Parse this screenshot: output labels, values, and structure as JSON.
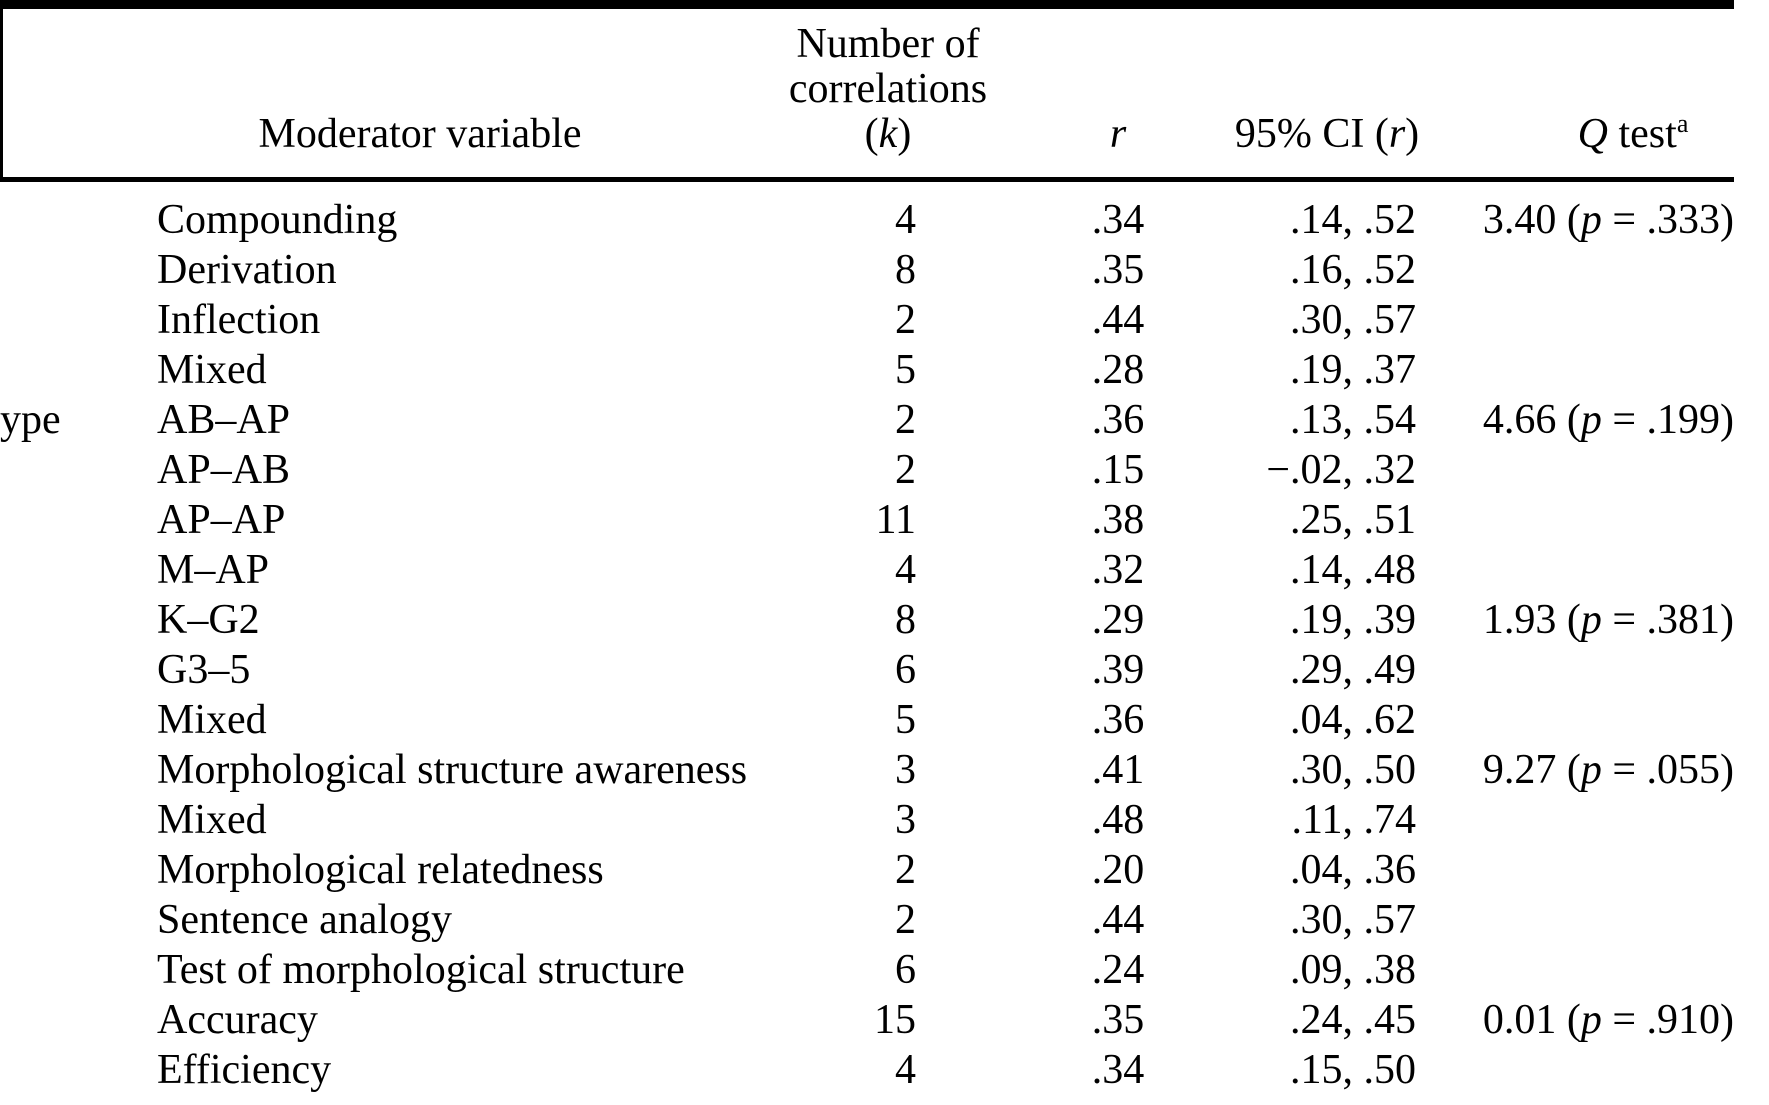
{
  "colors": {
    "ink": "#000000",
    "paper": "#ffffff"
  },
  "table": {
    "header": {
      "moderator": "Moderator variable",
      "k_line1": "Number of",
      "k_line2": "correlations",
      "k_line3": "(k)",
      "r": "r",
      "ci": "95% CI (r)",
      "q": "Q test",
      "q_sup": "a"
    },
    "rows": [
      {
        "side": "",
        "label": "Compounding",
        "k": "4",
        "r": ".34",
        "ci": ".14, .52",
        "q": "3.40 (p = .333)"
      },
      {
        "side": "",
        "label": "Derivation",
        "k": "8",
        "r": ".35",
        "ci": ".16, .52",
        "q": ""
      },
      {
        "side": "",
        "label": "Inflection",
        "k": "2",
        "r": ".44",
        "ci": ".30, .57",
        "q": ""
      },
      {
        "side": "",
        "label": "Mixed",
        "k": "5",
        "r": ".28",
        "ci": ".19, .37",
        "q": ""
      },
      {
        "side": "ype",
        "label": "AB–AP",
        "k": "2",
        "r": ".36",
        "ci": ".13, .54",
        "q": "4.66 (p = .199)"
      },
      {
        "side": "",
        "label": "AP–AB",
        "k": "2",
        "r": ".15",
        "ci": "−.02, .32",
        "q": ""
      },
      {
        "side": "",
        "label": "AP–AP",
        "k": "11",
        "r": ".38",
        "ci": ".25, .51",
        "q": ""
      },
      {
        "side": "",
        "label": "M–AP",
        "k": "4",
        "r": ".32",
        "ci": ".14, .48",
        "q": ""
      },
      {
        "side": "",
        "label": "K–G2",
        "k": "8",
        "r": ".29",
        "ci": ".19, .39",
        "q": "1.93 (p = .381)"
      },
      {
        "side": "",
        "label": "G3–5",
        "k": "6",
        "r": ".39",
        "ci": ".29, .49",
        "q": ""
      },
      {
        "side": "",
        "label": "Mixed",
        "k": "5",
        "r": ".36",
        "ci": ".04, .62",
        "q": ""
      },
      {
        "side": "",
        "label": "Morphological structure awareness",
        "k": "3",
        "r": ".41",
        "ci": ".30, .50",
        "q": "9.27 (p = .055)"
      },
      {
        "side": "",
        "label": "Mixed",
        "k": "3",
        "r": ".48",
        "ci": ".11, .74",
        "q": ""
      },
      {
        "side": "",
        "label": "Morphological relatedness",
        "k": "2",
        "r": ".20",
        "ci": ".04, .36",
        "q": ""
      },
      {
        "side": "",
        "label": "Sentence analogy",
        "k": "2",
        "r": ".44",
        "ci": ".30, .57",
        "q": ""
      },
      {
        "side": "",
        "label": "Test of morphological structure",
        "k": "6",
        "r": ".24",
        "ci": ".09, .38",
        "q": ""
      },
      {
        "side": "",
        "label": "Accuracy",
        "k": "15",
        "r": ".35",
        "ci": ".24, .45",
        "q": "0.01 (p = .910)"
      },
      {
        "side": "",
        "label": "Efficiency",
        "k": "4",
        "r": ".34",
        "ci": ".15, .50",
        "q": ""
      }
    ]
  }
}
